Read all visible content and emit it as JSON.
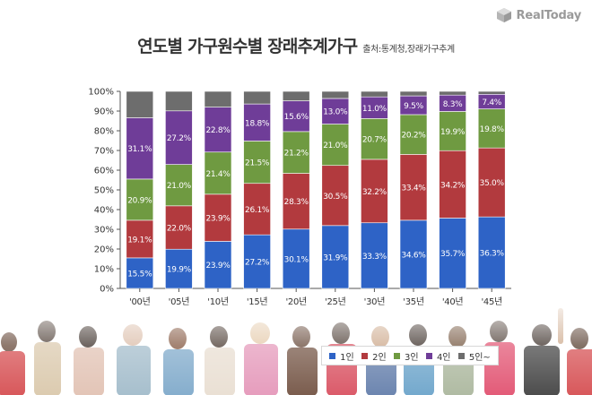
{
  "brand": {
    "name": "RealToday"
  },
  "title": "연도별 가구원수별 장래추계가구",
  "subtitle": "출처:통계청,장래가구추계",
  "chart_data": {
    "type": "bar",
    "stacked": true,
    "categories": [
      "'00년",
      "'05년",
      "'10년",
      "'15년",
      "'20년",
      "'25년",
      "'30년",
      "'35년",
      "'40년",
      "'45년"
    ],
    "ylim": [
      0,
      100
    ],
    "yticks": [
      "0%",
      "10%",
      "20%",
      "30%",
      "40%",
      "50%",
      "60%",
      "70%",
      "80%",
      "90%",
      "100%"
    ],
    "grid": false,
    "legend_position": "bottom-right",
    "series": [
      {
        "name": "1인",
        "color": "#2e63c6",
        "values": [
          15.5,
          19.9,
          23.9,
          27.2,
          30.1,
          31.9,
          33.3,
          34.6,
          35.7,
          36.3
        ],
        "labels": [
          "15.5%",
          "19.9%",
          "23.9%",
          "27.2%",
          "30.1%",
          "31.9%",
          "33.3%",
          "34.6%",
          "35.7%",
          "36.3%"
        ]
      },
      {
        "name": "2인",
        "color": "#b23a3e",
        "values": [
          19.1,
          22.0,
          23.9,
          26.1,
          28.3,
          30.5,
          32.2,
          33.4,
          34.2,
          35.0
        ],
        "labels": [
          "19.1%",
          "22.0%",
          "23.9%",
          "26.1%",
          "28.3%",
          "30.5%",
          "32.2%",
          "33.4%",
          "34.2%",
          "35.0%"
        ]
      },
      {
        "name": "3인",
        "color": "#6f9a41",
        "values": [
          20.9,
          21.0,
          21.4,
          21.5,
          21.2,
          21.0,
          20.7,
          20.2,
          19.9,
          19.8
        ],
        "labels": [
          "20.9%",
          "21.0%",
          "21.4%",
          "21.5%",
          "21.2%",
          "21.0%",
          "20.7%",
          "20.2%",
          "19.9%",
          "19.8%"
        ]
      },
      {
        "name": "4인",
        "color": "#6f3d98",
        "values": [
          31.1,
          27.2,
          22.8,
          18.8,
          15.6,
          13.0,
          11.0,
          9.5,
          8.3,
          7.4
        ],
        "labels": [
          "31.1%",
          "27.2%",
          "22.8%",
          "18.8%",
          "15.6%",
          "13.0%",
          "11.0%",
          "9.5%",
          "8.3%",
          "7.4%"
        ]
      },
      {
        "name": "5인~",
        "color": "#6d6d6d",
        "values": [
          13.4,
          9.9,
          8.0,
          6.4,
          4.8,
          3.6,
          2.8,
          2.3,
          1.9,
          1.5
        ]
      }
    ]
  }
}
